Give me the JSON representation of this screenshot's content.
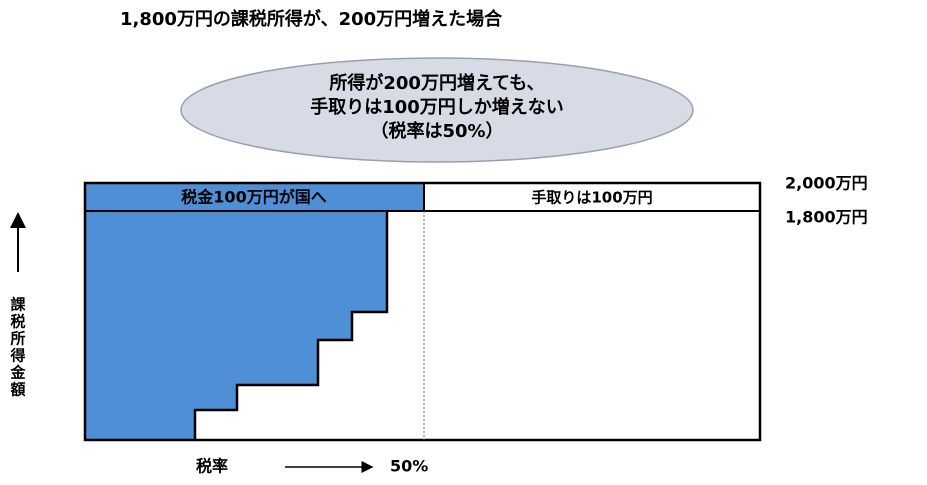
{
  "title": "1,800万円の課税所得が、200万円増えた場合",
  "callout": {
    "lines": [
      "所得が200万円増えても、",
      "手取りは100万円しか増えない",
      "（税率は50%）"
    ]
  },
  "band": {
    "tax": "税金100万円が国へ",
    "takehome": "手取りは100万円"
  },
  "levels": {
    "upper": "2,000万円",
    "lower": "1,800万円"
  },
  "y_axis": {
    "label": [
      "課",
      "税",
      "所",
      "得",
      "金",
      "額"
    ]
  },
  "x_axis": {
    "label": "税率",
    "end": "50%"
  }
}
